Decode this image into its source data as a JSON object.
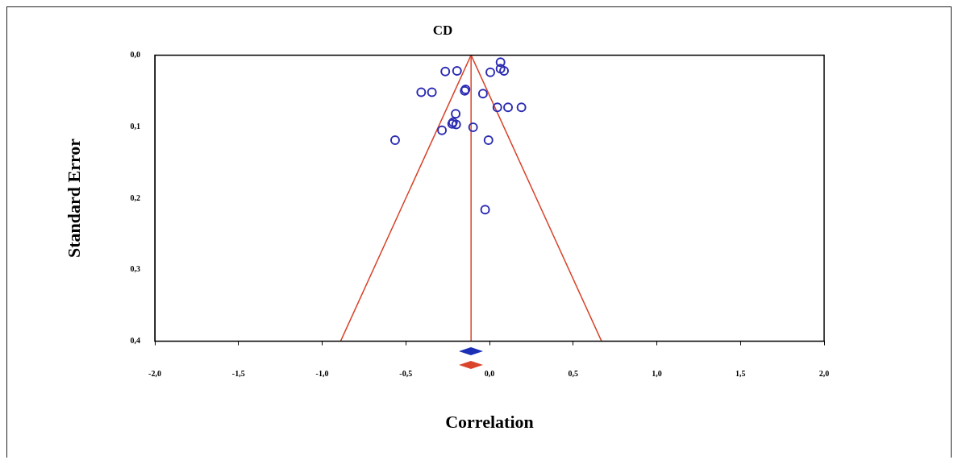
{
  "chart_data": {
    "type": "scatter",
    "title": "CD",
    "xlabel": "Correlation",
    "ylabel": "Standard Error",
    "xlim": [
      -2,
      2
    ],
    "ylim": [
      0.4,
      0
    ],
    "xticks": [
      {
        "value": -2,
        "label": "-2,0"
      },
      {
        "value": -1.5,
        "label": "-1,5"
      },
      {
        "value": -1,
        "label": "-1,0"
      },
      {
        "value": -0.5,
        "label": "-0,5"
      },
      {
        "value": 0,
        "label": "0,0"
      },
      {
        "value": 0.5,
        "label": "0,5"
      },
      {
        "value": 1,
        "label": "1,0"
      },
      {
        "value": 1.5,
        "label": "1,5"
      },
      {
        "value": 2,
        "label": "2,0"
      }
    ],
    "yticks": [
      {
        "value": 0,
        "label": "0,0"
      },
      {
        "value": 0.1,
        "label": "0,1"
      },
      {
        "value": 0.2,
        "label": "0,2"
      },
      {
        "value": 0.3,
        "label": "0,3"
      },
      {
        "value": 0.4,
        "label": "0,4"
      }
    ],
    "grid": false,
    "legend": false,
    "marker": "circle",
    "series": [
      {
        "color": "#2b2bb3",
        "x": [
          0.066,
          0.066,
          0.087,
          -0.264,
          -0.194,
          0.005,
          -0.408,
          -0.344,
          -0.143,
          -0.148,
          -0.039,
          0.047,
          0.111,
          0.191,
          -0.202,
          -0.218,
          -0.199,
          -0.223,
          -0.098,
          -0.284,
          -0.564,
          -0.006,
          -0.026
        ],
        "values": [
          0.01,
          0.019,
          0.022,
          0.023,
          0.022,
          0.024,
          0.052,
          0.052,
          0.048,
          0.05,
          0.054,
          0.073,
          0.073,
          0.073,
          0.082,
          0.094,
          0.097,
          0.096,
          0.101,
          0.105,
          0.119,
          0.119,
          0.216
        ]
      },
      {
        "type": "line",
        "color": "#d9442b",
        "marker": "none",
        "x": [
          -0.89,
          -0.11,
          0.67
        ],
        "values": [
          0.4,
          0,
          0.4
        ]
      },
      {
        "type": "line",
        "color": "#d9442b",
        "marker": "none",
        "x": [
          -0.11,
          -0.11
        ],
        "values": [
          0,
          0.4
        ]
      }
    ]
  }
}
